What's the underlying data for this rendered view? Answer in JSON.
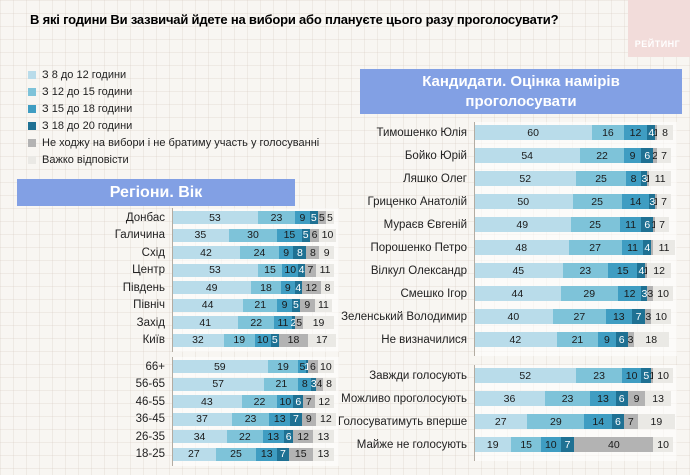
{
  "title": "В які години Ви зазвичай йдете на вибори або плануєте цього разу проголосувати?",
  "brand": {
    "logo_text": "РЕЙТИНГ"
  },
  "colors": {
    "header_bg": "#82a0e4",
    "logo_bg": "#f2dcda",
    "segment_colors": [
      "#b9dcea",
      "#7ec3d9",
      "#3f9dc2",
      "#1f7193",
      "#b3b3b3",
      "#eae9e5"
    ]
  },
  "legend": {
    "items": [
      {
        "label": "З 8 до 12 години",
        "color": "#b9dcea"
      },
      {
        "label": "З 12 до 15 години",
        "color": "#7ec3d9"
      },
      {
        "label": "З 15 до 18 години",
        "color": "#3f9dc2"
      },
      {
        "label": "З 18 до 20 години",
        "color": "#1f7193"
      },
      {
        "label": "Не ходжу на вибори і не братиму участь у голосуванні",
        "color": "#b3b3b3"
      },
      {
        "label": "Важко відповісти",
        "color": "#eae9e5"
      }
    ]
  },
  "left_panel": {
    "header": "Регіони. Вік"
  },
  "right_panel": {
    "header": "Кандидати. Оцінка намірів проголосувати"
  },
  "chart_data": {
    "type": "bar",
    "variant": "stacked-horizontal",
    "unit": "%",
    "xlim": [
      0,
      100
    ],
    "grid": "faint graph-paper background",
    "legend_position": "top-left",
    "series_labels": [
      "З 8 до 12 години",
      "З 12 до 15 години",
      "З 15 до 18 години",
      "З 18 до 20 години",
      "Не ходжу на вибори і не братиму участь у голосуванні",
      "Важко відповісти"
    ],
    "series_colors": [
      "#b9dcea",
      "#7ec3d9",
      "#3f9dc2",
      "#1f7193",
      "#b3b3b3",
      "#eae9e5"
    ],
    "groups": [
      {
        "id": "regions",
        "panel_title": "Регіони. Вік",
        "categories": [
          "Донбас",
          "Галичина",
          "Схід",
          "Центр",
          "Південь",
          "Північ",
          "Захід",
          "Київ"
        ],
        "rows": [
          [
            53,
            23,
            9,
            5,
            5,
            5
          ],
          [
            35,
            30,
            15,
            5,
            6,
            10
          ],
          [
            42,
            24,
            9,
            8,
            8,
            9
          ],
          [
            53,
            15,
            10,
            4,
            7,
            11
          ],
          [
            49,
            18,
            9,
            4,
            12,
            8
          ],
          [
            44,
            21,
            9,
            5,
            9,
            11
          ],
          [
            41,
            22,
            11,
            2,
            5,
            19
          ],
          [
            32,
            19,
            10,
            5,
            18,
            17
          ]
        ]
      },
      {
        "id": "ages",
        "panel_title": "Регіони. Вік",
        "categories": [
          "66+",
          "56-65",
          "46-55",
          "36-45",
          "26-35",
          "18-25"
        ],
        "rows": [
          [
            59,
            19,
            5,
            1,
            6,
            10
          ],
          [
            57,
            21,
            8,
            3,
            4,
            8
          ],
          [
            43,
            22,
            10,
            6,
            7,
            12
          ],
          [
            37,
            23,
            13,
            7,
            9,
            12
          ],
          [
            34,
            22,
            13,
            6,
            12,
            13
          ],
          [
            27,
            25,
            13,
            7,
            15,
            13
          ]
        ]
      },
      {
        "id": "candidates",
        "panel_title": "Кандидати. Оцінка намірів проголосувати",
        "categories": [
          "Тимошенко Юлія",
          "Бойко Юрій",
          "Ляшко Олег",
          "Гриценко Анатолій",
          "Мураєв Євгеній",
          "Порошенко Петро",
          "Вілкул Олександр",
          "Смешко Ігор",
          "Зеленський Володимир",
          "Не визначилися"
        ],
        "rows": [
          [
            60,
            16,
            12,
            4,
            1,
            8
          ],
          [
            54,
            22,
            9,
            6,
            2,
            7
          ],
          [
            52,
            25,
            8,
            3,
            1,
            11
          ],
          [
            50,
            25,
            14,
            3,
            1,
            7
          ],
          [
            49,
            25,
            11,
            6,
            1,
            7
          ],
          [
            48,
            27,
            11,
            4,
            1,
            11
          ],
          [
            45,
            23,
            15,
            4,
            1,
            12
          ],
          [
            44,
            29,
            12,
            3,
            3,
            10
          ],
          [
            40,
            27,
            13,
            7,
            3,
            10
          ],
          [
            42,
            21,
            9,
            6,
            3,
            18
          ]
        ],
        "hidden_labels": [
          [
            5,
            4
          ]
        ]
      },
      {
        "id": "habits",
        "categories": [
          "Завжди голосують",
          "Можливо проголосують",
          "Голосуватимуть вперше",
          "Майже не голосують"
        ],
        "rows": [
          [
            52,
            23,
            10,
            5,
            1,
            10
          ],
          [
            36,
            23,
            13,
            6,
            9,
            13
          ],
          [
            27,
            29,
            14,
            6,
            7,
            19
          ],
          [
            19,
            15,
            10,
            7,
            40,
            10
          ]
        ]
      }
    ]
  }
}
